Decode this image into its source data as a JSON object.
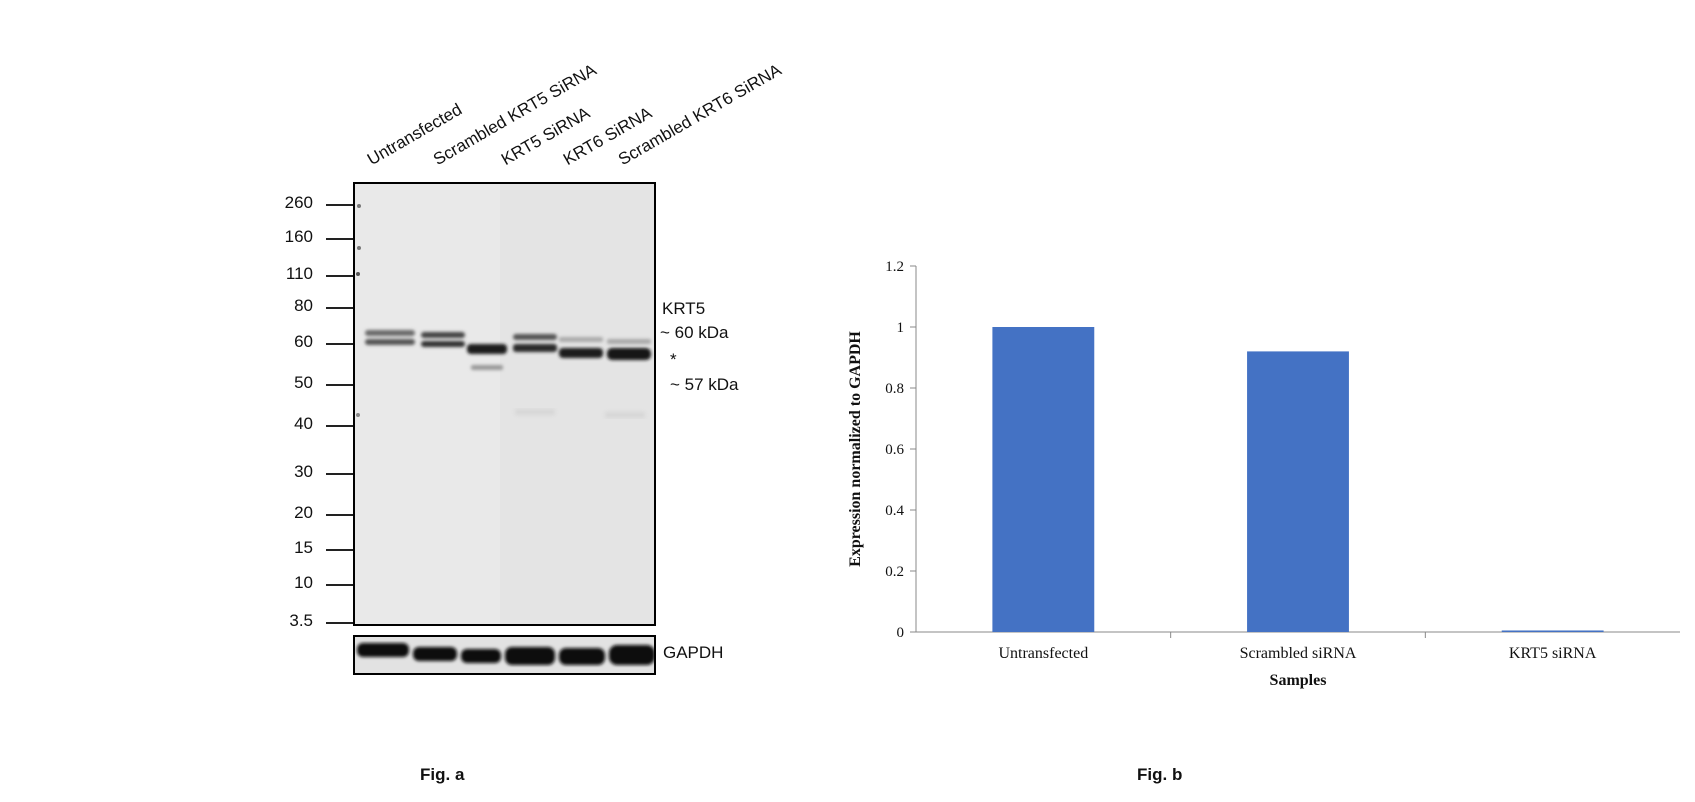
{
  "fig_a": {
    "caption": "Fig. a",
    "lanes": [
      "Untransfected",
      "Scrambled KRT5 SiRNA",
      "KRT5 SiRNA",
      "KRT6 SiRNA",
      "Scrambled KRT6 SiRNA"
    ],
    "markers": [
      "260",
      "160",
      "110",
      "80",
      "60",
      "50",
      "40",
      "30",
      "20",
      "15",
      "10",
      "3.5"
    ],
    "band_labels": {
      "protein": "KRT5",
      "upper": "~ 60 kDa",
      "asterisk": "*",
      "lower": "~ 57 kDa",
      "loading_control": "GAPDH"
    }
  },
  "fig_b": {
    "caption": "Fig. b"
  },
  "chart_data": {
    "type": "bar",
    "categories": [
      "Untransfected",
      "Scrambled siRNA",
      "KRT5 siRNA"
    ],
    "values": [
      1.0,
      0.92,
      0.005
    ],
    "xlabel": "Samples",
    "ylabel": "Expression normalized to GAPDH",
    "ylim": [
      0,
      1.2
    ],
    "yticks": [
      "0",
      "0.2",
      "0.4",
      "0.6",
      "0.8",
      "1",
      "1.2"
    ],
    "bar_color": "#4472c4",
    "grid": false
  }
}
